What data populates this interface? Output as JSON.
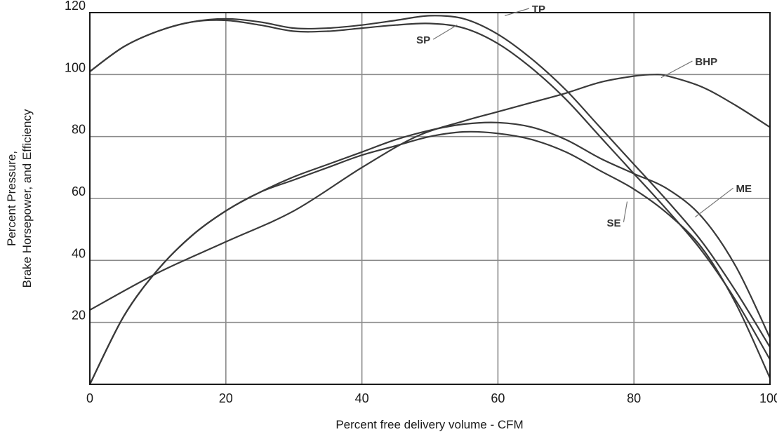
{
  "chart_data": {
    "type": "line",
    "title": "",
    "xlabel": "Percent  free delivery volume - CFM",
    "ylabel_lines": [
      "Percent Pressure,",
      "Brake Horsepower, and Efficiency"
    ],
    "xlim": [
      0,
      100
    ],
    "ylim": [
      0,
      120
    ],
    "x_ticks": [
      0,
      20,
      40,
      60,
      80,
      100
    ],
    "y_ticks": [
      20,
      40,
      60,
      80,
      100,
      120
    ],
    "y_grid": [
      20,
      40,
      60,
      80,
      100
    ],
    "x_grid": [
      20,
      40,
      60,
      80
    ],
    "grid": true,
    "x_tick_labels": [
      "0",
      "20",
      "40",
      "60",
      "80",
      "100"
    ],
    "y_tick_labels": [
      "20",
      "40",
      "60",
      "80",
      "100",
      "120"
    ],
    "series": [
      {
        "name": "TP",
        "points": [
          [
            0,
            101
          ],
          [
            5,
            109
          ],
          [
            10,
            114
          ],
          [
            15,
            117
          ],
          [
            20,
            118
          ],
          [
            25,
            117
          ],
          [
            30,
            115
          ],
          [
            35,
            115
          ],
          [
            40,
            116
          ],
          [
            45,
            117.5
          ],
          [
            50,
            119
          ],
          [
            55,
            118
          ],
          [
            60,
            113
          ],
          [
            65,
            105
          ],
          [
            70,
            95
          ],
          [
            75,
            83
          ],
          [
            80,
            71
          ],
          [
            85,
            59
          ],
          [
            90,
            46
          ],
          [
            95,
            30
          ],
          [
            100,
            12
          ]
        ]
      },
      {
        "name": "SP",
        "points": [
          [
            0,
            101
          ],
          [
            5,
            109
          ],
          [
            10,
            114
          ],
          [
            15,
            117
          ],
          [
            20,
            117.5
          ],
          [
            25,
            116
          ],
          [
            30,
            114
          ],
          [
            35,
            114
          ],
          [
            40,
            115
          ],
          [
            45,
            116
          ],
          [
            50,
            116.5
          ],
          [
            55,
            115
          ],
          [
            60,
            110
          ],
          [
            65,
            102
          ],
          [
            70,
            92
          ],
          [
            75,
            80
          ],
          [
            80,
            68
          ],
          [
            85,
            56
          ],
          [
            90,
            43
          ],
          [
            95,
            27
          ],
          [
            100,
            8
          ]
        ]
      },
      {
        "name": "BHP",
        "points": [
          [
            0,
            24
          ],
          [
            10,
            36
          ],
          [
            20,
            46
          ],
          [
            30,
            56
          ],
          [
            40,
            70
          ],
          [
            48,
            80
          ],
          [
            55,
            85
          ],
          [
            60,
            88
          ],
          [
            65,
            91
          ],
          [
            70,
            94
          ],
          [
            75,
            97.5
          ],
          [
            80,
            99.5
          ],
          [
            83,
            100
          ],
          [
            85,
            99.5
          ],
          [
            90,
            96
          ],
          [
            95,
            90
          ],
          [
            100,
            83
          ]
        ]
      },
      {
        "name": "ME",
        "points": [
          [
            0,
            0
          ],
          [
            5,
            22
          ],
          [
            10,
            37
          ],
          [
            15,
            48
          ],
          [
            20,
            56
          ],
          [
            25,
            62
          ],
          [
            30,
            67
          ],
          [
            35,
            71
          ],
          [
            40,
            75
          ],
          [
            45,
            79
          ],
          [
            50,
            82
          ],
          [
            55,
            84
          ],
          [
            60,
            84.5
          ],
          [
            65,
            83
          ],
          [
            70,
            79
          ],
          [
            75,
            73
          ],
          [
            80,
            68
          ],
          [
            85,
            63
          ],
          [
            90,
            54
          ],
          [
            95,
            38
          ],
          [
            100,
            15
          ]
        ]
      },
      {
        "name": "SE",
        "points": [
          [
            0,
            0
          ],
          [
            5,
            22
          ],
          [
            10,
            37
          ],
          [
            15,
            48
          ],
          [
            20,
            56
          ],
          [
            25,
            62
          ],
          [
            30,
            66
          ],
          [
            35,
            70
          ],
          [
            40,
            74
          ],
          [
            45,
            77
          ],
          [
            50,
            80
          ],
          [
            55,
            81.5
          ],
          [
            60,
            81
          ],
          [
            65,
            79
          ],
          [
            70,
            75
          ],
          [
            75,
            69
          ],
          [
            80,
            63
          ],
          [
            85,
            55
          ],
          [
            90,
            44
          ],
          [
            95,
            26
          ],
          [
            100,
            2
          ]
        ]
      }
    ],
    "annotations": [
      {
        "text": "TP",
        "label_x": 65,
        "label_y": 120,
        "anchor_x": 61,
        "anchor_y": 119
      },
      {
        "text": "SP",
        "label_x": 48,
        "label_y": 110,
        "anchor_x": 54,
        "anchor_y": 116
      },
      {
        "text": "BHP",
        "label_x": 89,
        "label_y": 103,
        "anchor_x": 84,
        "anchor_y": 99
      },
      {
        "text": "ME",
        "label_x": 95,
        "label_y": 62,
        "anchor_x": 89,
        "anchor_y": 54
      },
      {
        "text": "SE",
        "label_x": 76,
        "label_y": 51,
        "anchor_x": 79,
        "anchor_y": 59
      }
    ],
    "colors": {
      "curve": "#3a3a3a",
      "grid": "#8a8a8a",
      "frame": "#1a1a1a",
      "text": "#1a1a1a"
    }
  }
}
